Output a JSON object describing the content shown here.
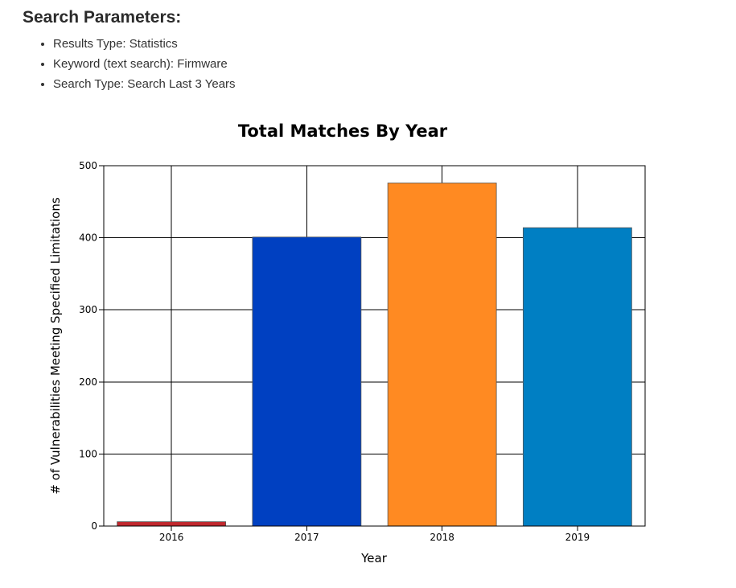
{
  "params": {
    "heading": "Search Parameters:",
    "items": [
      "Results Type: Statistics",
      "Keyword (text search): Firmware",
      "Search Type: Search Last 3 Years"
    ]
  },
  "chart_data": {
    "type": "bar",
    "title": "Total Matches By Year",
    "xlabel": "Year",
    "ylabel": "# of Vulnerabilities Meeting Specified Limitations",
    "categories": [
      "2016",
      "2017",
      "2018",
      "2019"
    ],
    "values": [
      6,
      401,
      476,
      414
    ],
    "colors": [
      "#c0282d",
      "#0040c1",
      "#ff8a22",
      "#007fc3"
    ],
    "ylim": [
      0,
      500
    ],
    "yticks": [
      0,
      100,
      200,
      300,
      400,
      500
    ],
    "grid": true,
    "legend": "none"
  }
}
